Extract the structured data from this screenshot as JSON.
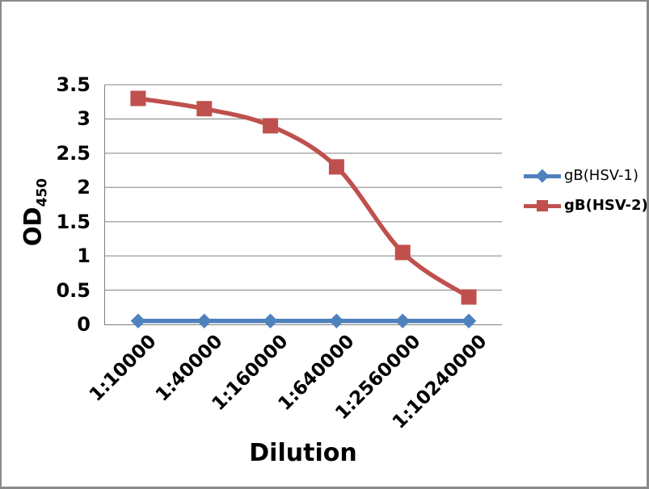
{
  "frame": {
    "border_color": "#8a8a8a",
    "background": "#ffffff"
  },
  "chart_data": {
    "type": "line",
    "smooth": true,
    "title": "",
    "xlabel": "Dilution",
    "ylabel": "OD",
    "ylabel_subscript": "450",
    "categories": [
      "1:10000",
      "1:40000",
      "1:160000",
      "1:640000",
      "1:2560000",
      "1:10240000"
    ],
    "series": [
      {
        "name": "gB(HSV-1)",
        "color": "#4F81BD",
        "marker": "diamond",
        "legend_bold": false,
        "values": [
          0.05,
          0.05,
          0.05,
          0.05,
          0.05,
          0.05
        ]
      },
      {
        "name": "gB(HSV-2)",
        "color": "#C0504D",
        "marker": "square",
        "legend_bold": true,
        "values": [
          3.3,
          3.15,
          2.9,
          2.3,
          1.05,
          0.4
        ]
      }
    ],
    "ylim": [
      0,
      3.5
    ],
    "ytick_step": 0.5,
    "yticks": [
      "0",
      "0.5",
      "1",
      "1.5",
      "2",
      "2.5",
      "3",
      "3.5"
    ],
    "grid": true,
    "legend_position": "right",
    "axis_color": "#7f7f7f",
    "grid_color": "#9a9a9a",
    "text_color": "#000000"
  }
}
